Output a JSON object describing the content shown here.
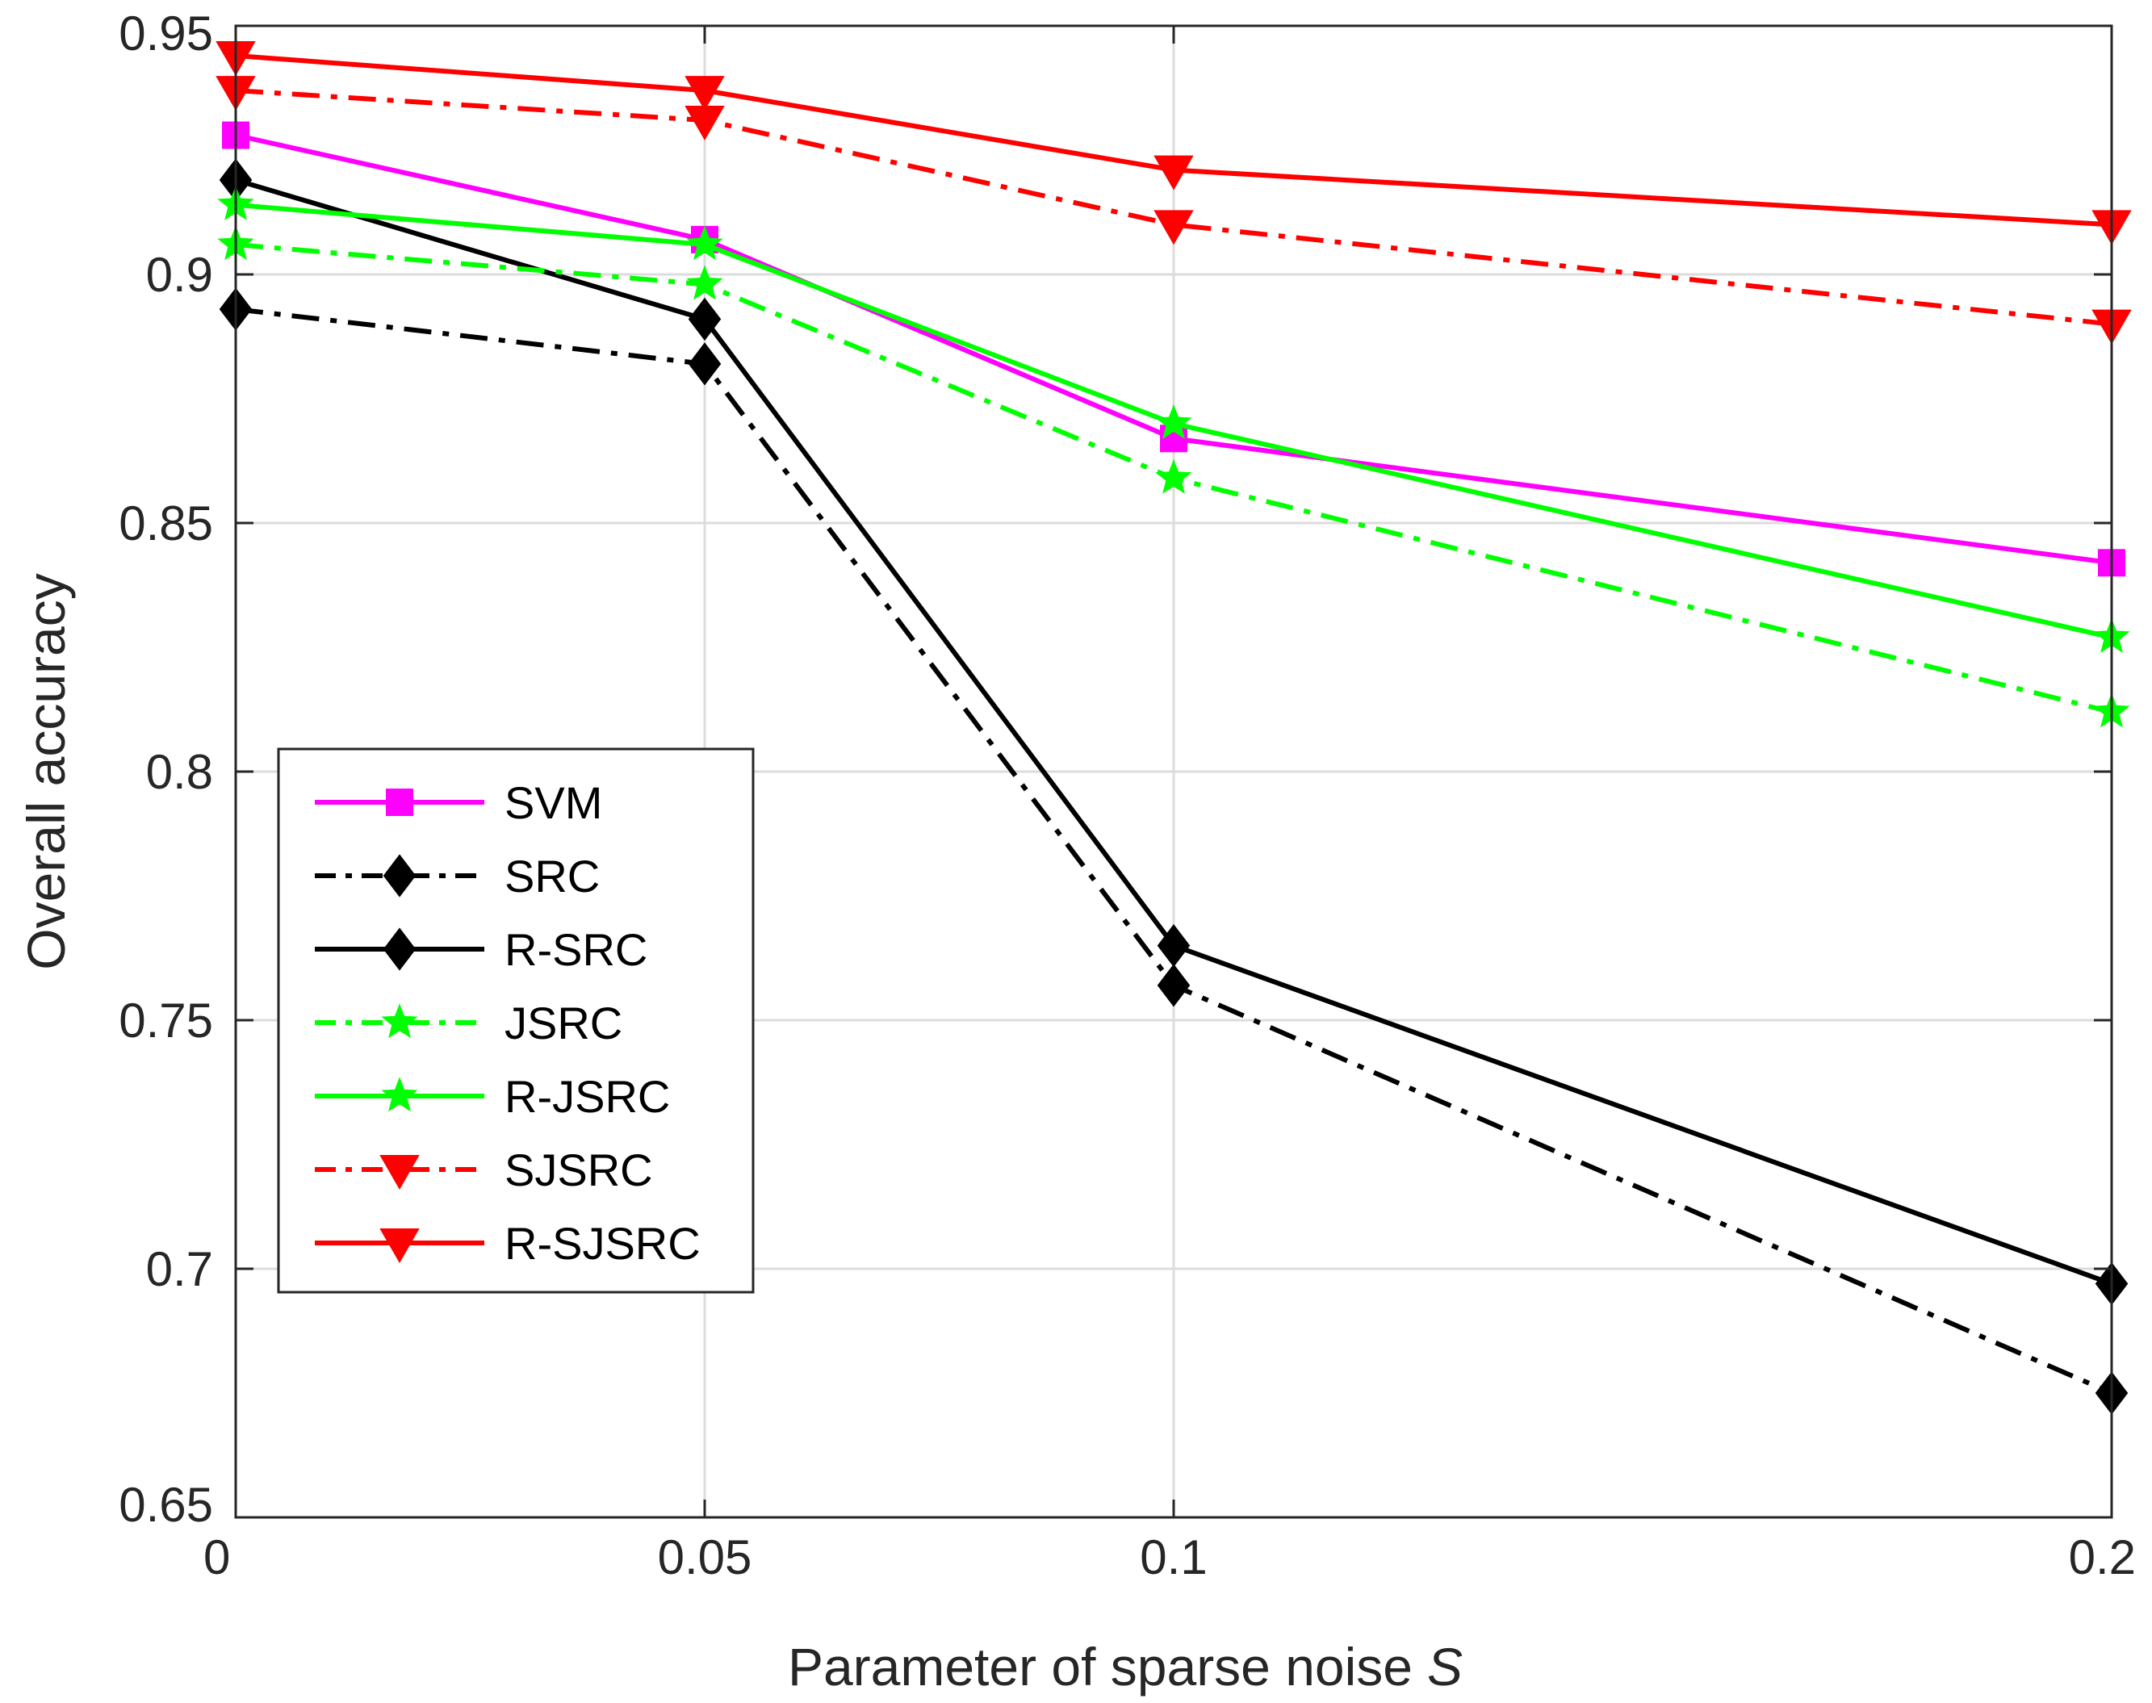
{
  "chart_data": {
    "type": "line",
    "title": "",
    "xlabel": "Parameter of sparse noise",
    "xlabel_symbol": "S",
    "ylabel": "Overall accuracy",
    "xlim": [
      0,
      0.2
    ],
    "ylim": [
      0.65,
      0.95
    ],
    "x_positions": [
      0,
      1,
      2,
      4
    ],
    "x_tick_labels": [
      "0",
      "0.05",
      "0.1",
      "0.2"
    ],
    "y_ticks": [
      0.65,
      0.7,
      0.75,
      0.8,
      0.85,
      0.9,
      0.95
    ],
    "y_tick_labels": [
      "0.65",
      "0.7",
      "0.75",
      "0.8",
      "0.85",
      "0.9",
      "0.95"
    ],
    "x_marker_positions": [
      0,
      1,
      2,
      4
    ],
    "grid": true,
    "legend_position": "center-left",
    "series": [
      {
        "name": "SVM",
        "color": "#ff00ff",
        "dash": "solid",
        "marker": "square",
        "values": [
          0.928,
          0.907,
          0.867,
          0.842
        ]
      },
      {
        "name": "SRC",
        "color": "#000000",
        "dash": "dashdot",
        "marker": "diamond",
        "values": [
          0.893,
          0.882,
          0.757,
          0.675
        ]
      },
      {
        "name": "R-SRC",
        "color": "#000000",
        "dash": "solid",
        "marker": "diamond",
        "values": [
          0.919,
          0.891,
          0.765,
          0.697
        ]
      },
      {
        "name": "JSRC",
        "color": "#00ff00",
        "dash": "dashdot",
        "marker": "star",
        "values": [
          0.906,
          0.898,
          0.859,
          0.812
        ]
      },
      {
        "name": "R-JSRC",
        "color": "#00ff00",
        "dash": "solid",
        "marker": "star",
        "values": [
          0.914,
          0.906,
          0.87,
          0.827
        ]
      },
      {
        "name": "SJSRC",
        "color": "#ff0000",
        "dash": "dashdot",
        "marker": "triangle",
        "values": [
          0.937,
          0.931,
          0.91,
          0.89
        ]
      },
      {
        "name": "R-SJSRC",
        "color": "#ff0000",
        "dash": "solid",
        "marker": "triangle",
        "values": [
          0.944,
          0.937,
          0.921,
          0.91
        ]
      }
    ]
  }
}
